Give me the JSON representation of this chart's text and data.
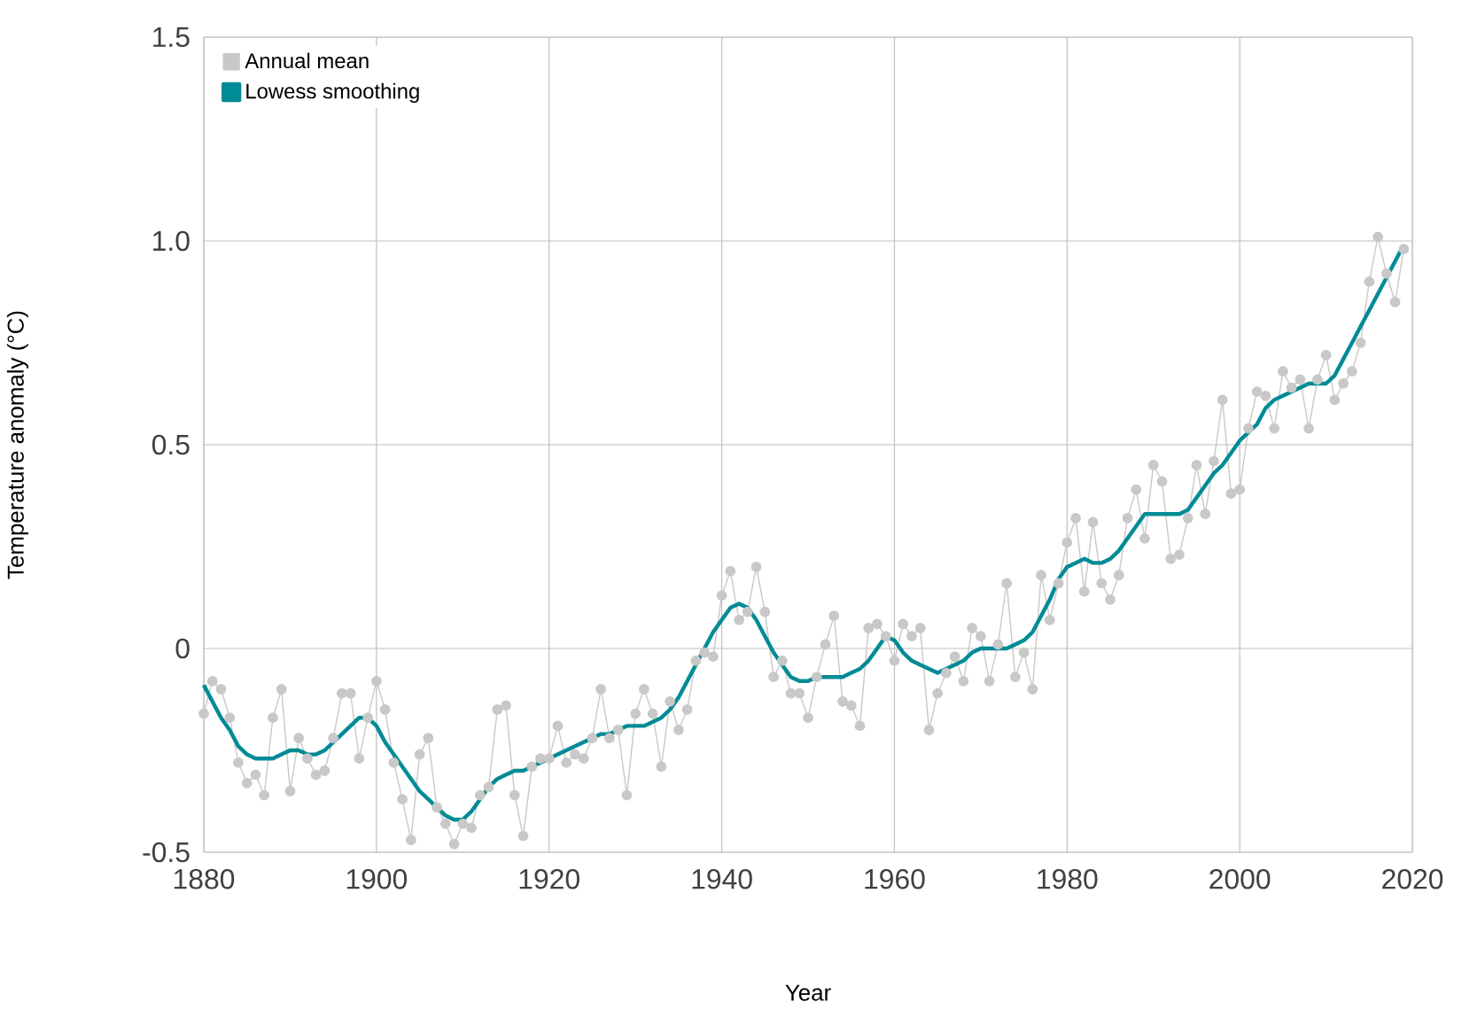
{
  "chart_data": {
    "type": "line",
    "xlabel": "Year",
    "ylabel": "Temperature anomaly (°C)",
    "xlim": [
      1880,
      2020
    ],
    "ylim": [
      -0.5,
      1.5
    ],
    "xticks": [
      1880,
      1900,
      1920,
      1940,
      1960,
      1980,
      2000,
      2020
    ],
    "yticks": [
      {
        "value": -0.5,
        "label": "-0.5"
      },
      {
        "value": 0,
        "label": "0"
      },
      {
        "value": 0.5,
        "label": "0.5"
      },
      {
        "value": 1.0,
        "label": "1.0"
      },
      {
        "value": 1.5,
        "label": "1.5"
      }
    ],
    "grid": true,
    "legend": "top left",
    "marker": "circle",
    "x": [
      1880,
      1881,
      1882,
      1883,
      1884,
      1885,
      1886,
      1887,
      1888,
      1889,
      1890,
      1891,
      1892,
      1893,
      1894,
      1895,
      1896,
      1897,
      1898,
      1899,
      1900,
      1901,
      1902,
      1903,
      1904,
      1905,
      1906,
      1907,
      1908,
      1909,
      1910,
      1911,
      1912,
      1913,
      1914,
      1915,
      1916,
      1917,
      1918,
      1919,
      1920,
      1921,
      1922,
      1923,
      1924,
      1925,
      1926,
      1927,
      1928,
      1929,
      1930,
      1931,
      1932,
      1933,
      1934,
      1935,
      1936,
      1937,
      1938,
      1939,
      1940,
      1941,
      1942,
      1943,
      1944,
      1945,
      1946,
      1947,
      1948,
      1949,
      1950,
      1951,
      1952,
      1953,
      1954,
      1955,
      1956,
      1957,
      1958,
      1959,
      1960,
      1961,
      1962,
      1963,
      1964,
      1965,
      1966,
      1967,
      1968,
      1969,
      1970,
      1971,
      1972,
      1973,
      1974,
      1975,
      1976,
      1977,
      1978,
      1979,
      1980,
      1981,
      1982,
      1983,
      1984,
      1985,
      1986,
      1987,
      1988,
      1989,
      1990,
      1991,
      1992,
      1993,
      1994,
      1995,
      1996,
      1997,
      1998,
      1999,
      2000,
      2001,
      2002,
      2003,
      2004,
      2005,
      2006,
      2007,
      2008,
      2009,
      2010,
      2011,
      2012,
      2013,
      2014,
      2015,
      2016,
      2017,
      2018,
      2019
    ],
    "series": [
      {
        "name": "Annual mean",
        "color": "#c8c8c8",
        "values": [
          -0.16,
          -0.08,
          -0.1,
          -0.17,
          -0.28,
          -0.33,
          -0.31,
          -0.36,
          -0.17,
          -0.1,
          -0.35,
          -0.22,
          -0.27,
          -0.31,
          -0.3,
          -0.22,
          -0.11,
          -0.11,
          -0.27,
          -0.17,
          -0.08,
          -0.15,
          -0.28,
          -0.37,
          -0.47,
          -0.26,
          -0.22,
          -0.39,
          -0.43,
          -0.48,
          -0.43,
          -0.44,
          -0.36,
          -0.34,
          -0.15,
          -0.14,
          -0.36,
          -0.46,
          -0.29,
          -0.27,
          -0.27,
          -0.19,
          -0.28,
          -0.26,
          -0.27,
          -0.22,
          -0.1,
          -0.22,
          -0.2,
          -0.36,
          -0.16,
          -0.1,
          -0.16,
          -0.29,
          -0.13,
          -0.2,
          -0.15,
          -0.03,
          -0.01,
          -0.02,
          0.13,
          0.19,
          0.07,
          0.09,
          0.2,
          0.09,
          -0.07,
          -0.03,
          -0.11,
          -0.11,
          -0.17,
          -0.07,
          0.01,
          0.08,
          -0.13,
          -0.14,
          -0.19,
          0.05,
          0.06,
          0.03,
          -0.03,
          0.06,
          0.03,
          0.05,
          -0.2,
          -0.11,
          -0.06,
          -0.02,
          -0.08,
          0.05,
          0.03,
          -0.08,
          0.01,
          0.16,
          -0.07,
          -0.01,
          -0.1,
          0.18,
          0.07,
          0.16,
          0.26,
          0.32,
          0.14,
          0.31,
          0.16,
          0.12,
          0.18,
          0.32,
          0.39,
          0.27,
          0.45,
          0.41,
          0.22,
          0.23,
          0.32,
          0.45,
          0.33,
          0.46,
          0.61,
          0.38,
          0.39,
          0.54,
          0.63,
          0.62,
          0.54,
          0.68,
          0.64,
          0.66,
          0.54,
          0.66,
          0.72,
          0.61,
          0.65,
          0.68,
          0.75,
          0.9,
          1.01,
          0.92,
          0.85,
          0.98
        ]
      },
      {
        "name": "Lowess smoothing",
        "color": "#008b96",
        "marker": "none",
        "values": [
          -0.09,
          -0.13,
          -0.17,
          -0.2,
          -0.24,
          -0.26,
          -0.27,
          -0.27,
          -0.27,
          -0.26,
          -0.25,
          -0.25,
          -0.26,
          -0.26,
          -0.25,
          -0.23,
          -0.21,
          -0.19,
          -0.17,
          -0.17,
          -0.19,
          -0.23,
          -0.26,
          -0.29,
          -0.32,
          -0.35,
          -0.37,
          -0.39,
          -0.41,
          -0.42,
          -0.42,
          -0.4,
          -0.37,
          -0.34,
          -0.32,
          -0.31,
          -0.3,
          -0.3,
          -0.29,
          -0.28,
          -0.27,
          -0.26,
          -0.25,
          -0.24,
          -0.23,
          -0.22,
          -0.21,
          -0.21,
          -0.2,
          -0.19,
          -0.19,
          -0.19,
          -0.18,
          -0.17,
          -0.15,
          -0.12,
          -0.08,
          -0.04,
          0.0,
          0.04,
          0.07,
          0.1,
          0.11,
          0.1,
          0.07,
          0.03,
          -0.01,
          -0.04,
          -0.07,
          -0.08,
          -0.08,
          -0.07,
          -0.07,
          -0.07,
          -0.07,
          -0.06,
          -0.05,
          -0.03,
          0.0,
          0.03,
          0.02,
          -0.01,
          -0.03,
          -0.04,
          -0.05,
          -0.06,
          -0.05,
          -0.04,
          -0.03,
          -0.01,
          0.0,
          0.0,
          0.0,
          0.0,
          0.01,
          0.02,
          0.04,
          0.08,
          0.12,
          0.17,
          0.2,
          0.21,
          0.22,
          0.21,
          0.21,
          0.22,
          0.24,
          0.27,
          0.3,
          0.33,
          0.33,
          0.33,
          0.33,
          0.33,
          0.34,
          0.37,
          0.4,
          0.43,
          0.45,
          0.48,
          0.51,
          0.53,
          0.55,
          0.59,
          0.61,
          0.62,
          0.63,
          0.64,
          0.65,
          0.65,
          0.65,
          0.67,
          0.71,
          0.75,
          0.79,
          0.83,
          0.87,
          0.91,
          0.95,
          0.99
        ]
      }
    ]
  }
}
